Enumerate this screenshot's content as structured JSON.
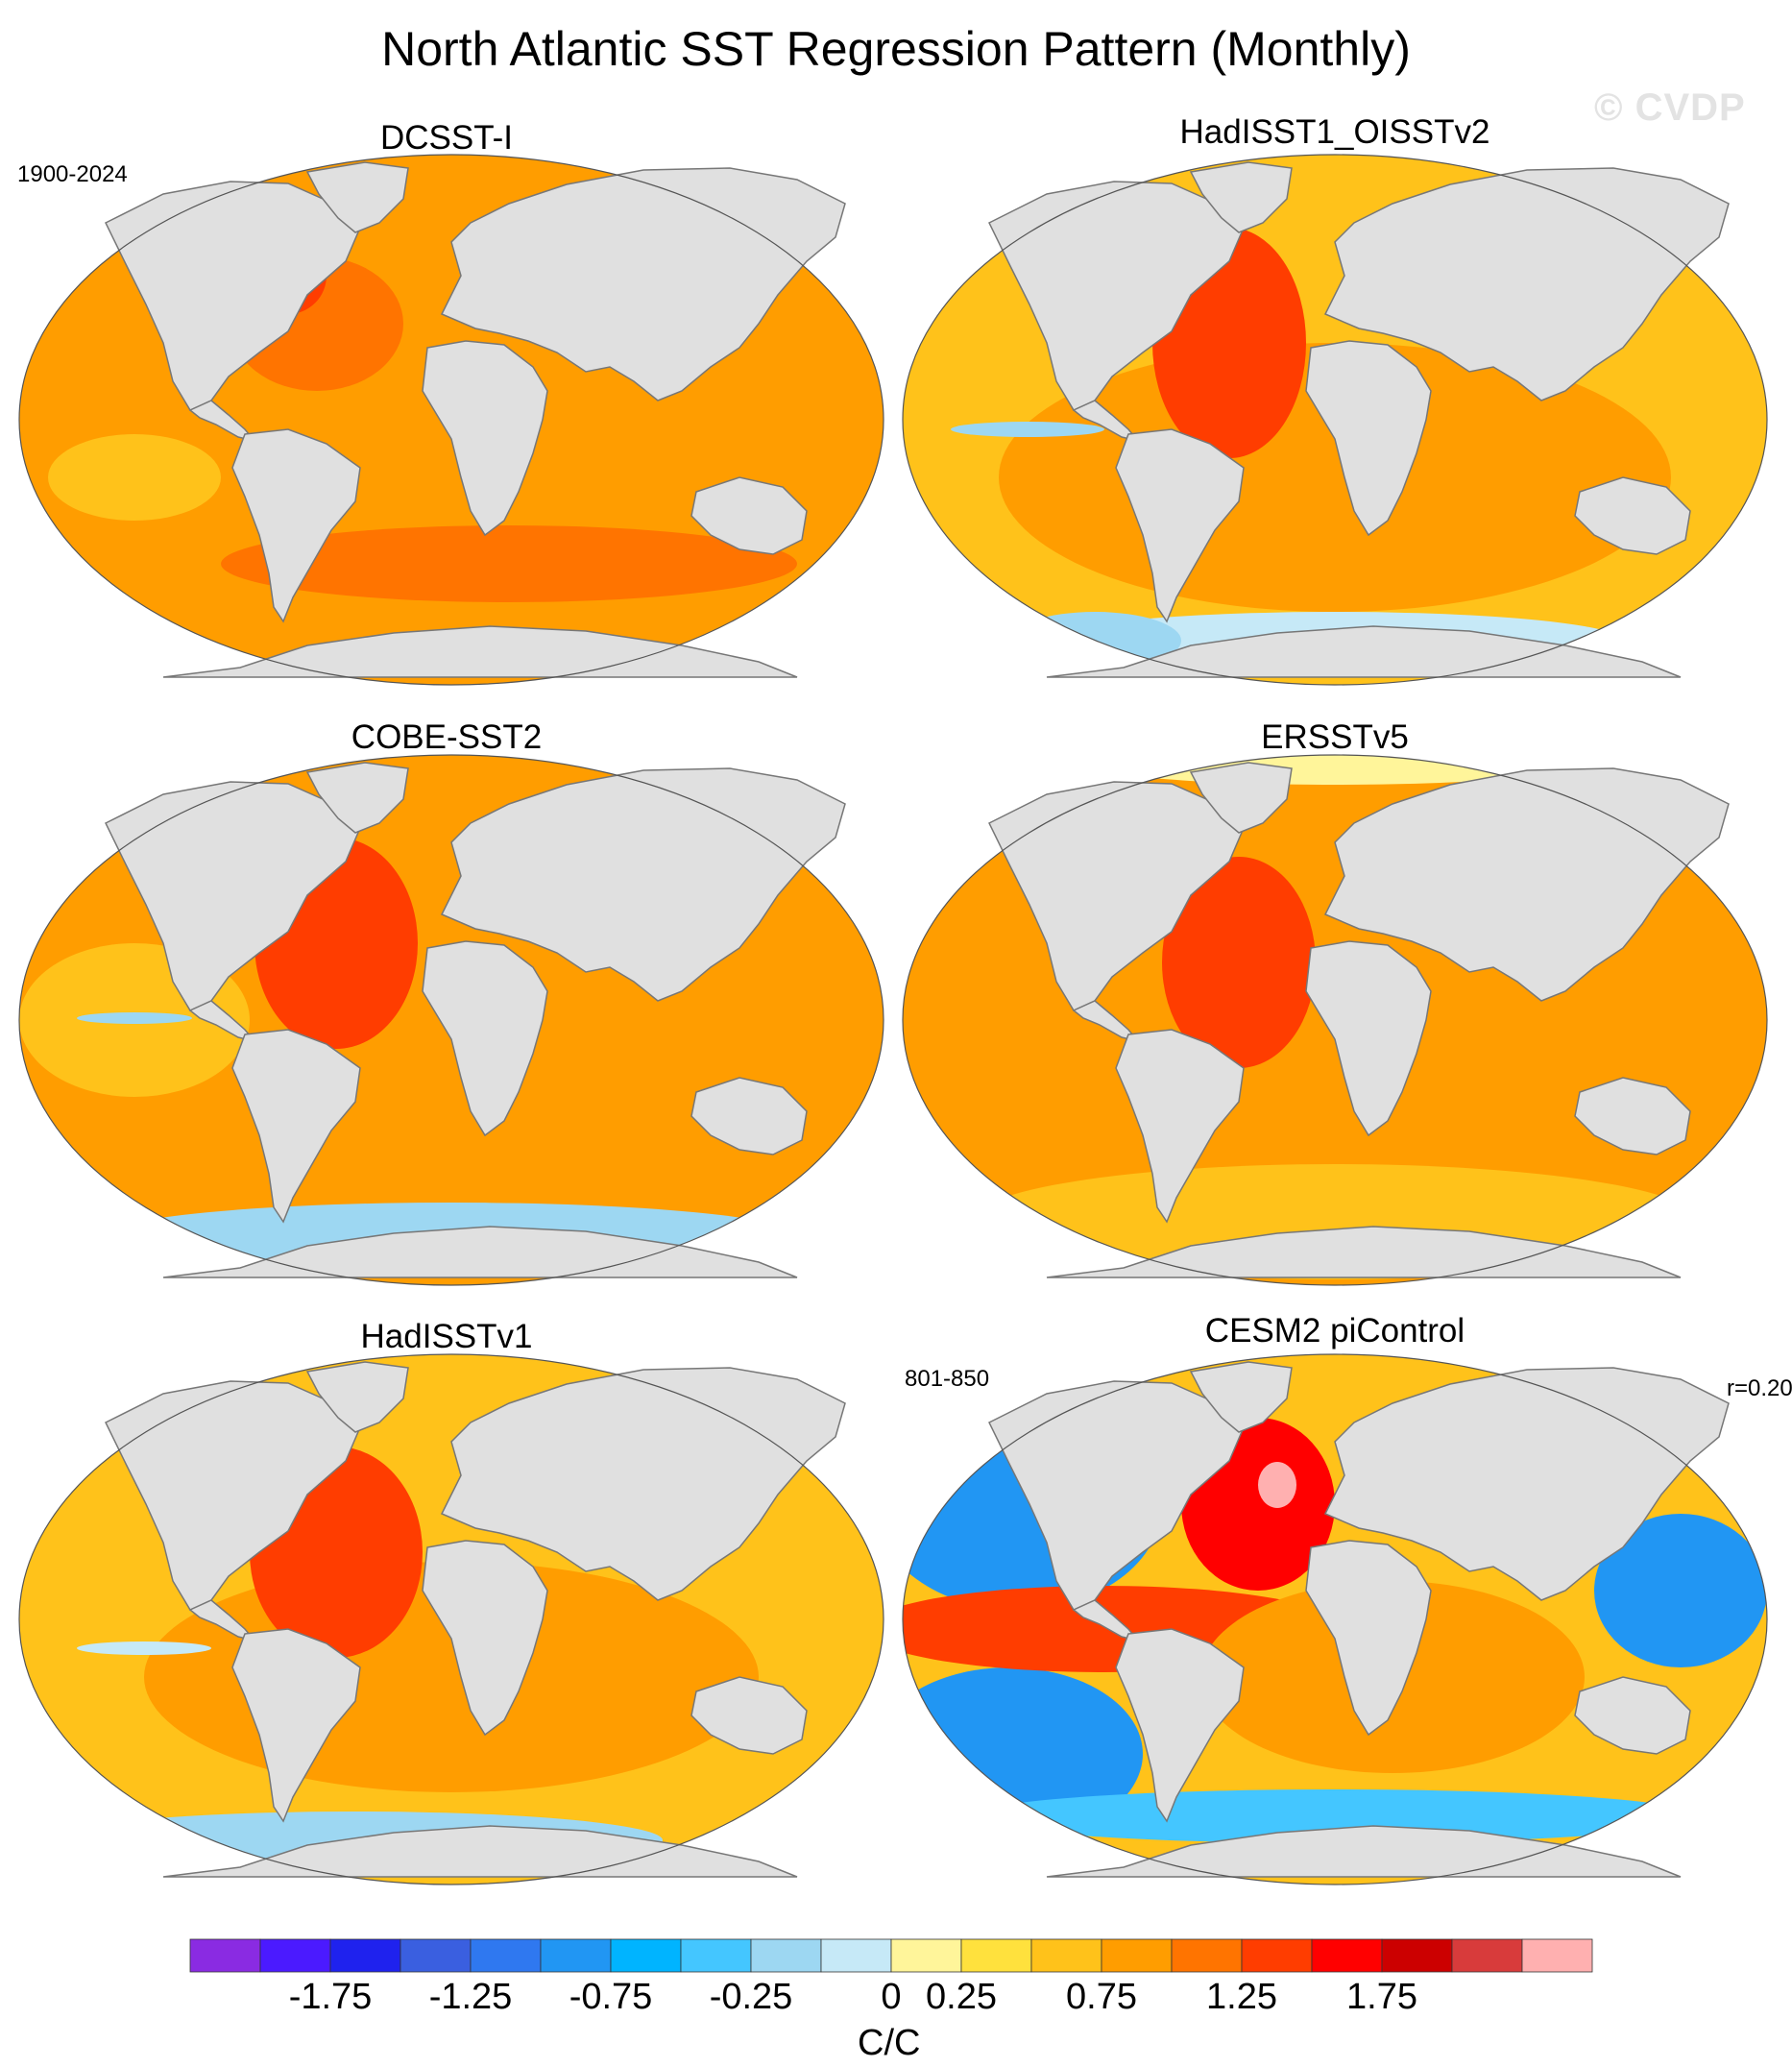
{
  "title": "North Atlantic SST Regression Pattern (Monthly)",
  "watermark": "© CVDP",
  "period_obs": "1900-2024",
  "period_model": "801-850",
  "model_stat": "r=0.20",
  "panels": [
    {
      "title": "DCSST-I",
      "style": "smooth"
    },
    {
      "title": "HadISST1_OISSTv2",
      "style": "mixed"
    },
    {
      "title": "COBE-SST2",
      "style": "mixed2"
    },
    {
      "title": "ERSSTv5",
      "style": "smooth2"
    },
    {
      "title": "HadISSTv1",
      "style": "mixed3"
    },
    {
      "title": "CESM2 piControl",
      "style": "model"
    }
  ],
  "colorbar": {
    "units": "C/C",
    "colors": [
      "#8a2be2",
      "#4b1aff",
      "#1f22ee",
      "#3a5fe0",
      "#2f78f0",
      "#2196f3",
      "#00b4ff",
      "#44c6ff",
      "#9dd7f2",
      "#c6e9f7",
      "#fff59a",
      "#ffe13d",
      "#ffc21a",
      "#ff9d00",
      "#ff7400",
      "#ff3d00",
      "#ff0000",
      "#cc0000",
      "#d83b3b",
      "#ffb0b0"
    ],
    "tick_labels": [
      "-1.75",
      "-1.25",
      "-0.75",
      "-0.25",
      "0",
      "0.25",
      "0.75",
      "1.25",
      "1.75"
    ]
  }
}
